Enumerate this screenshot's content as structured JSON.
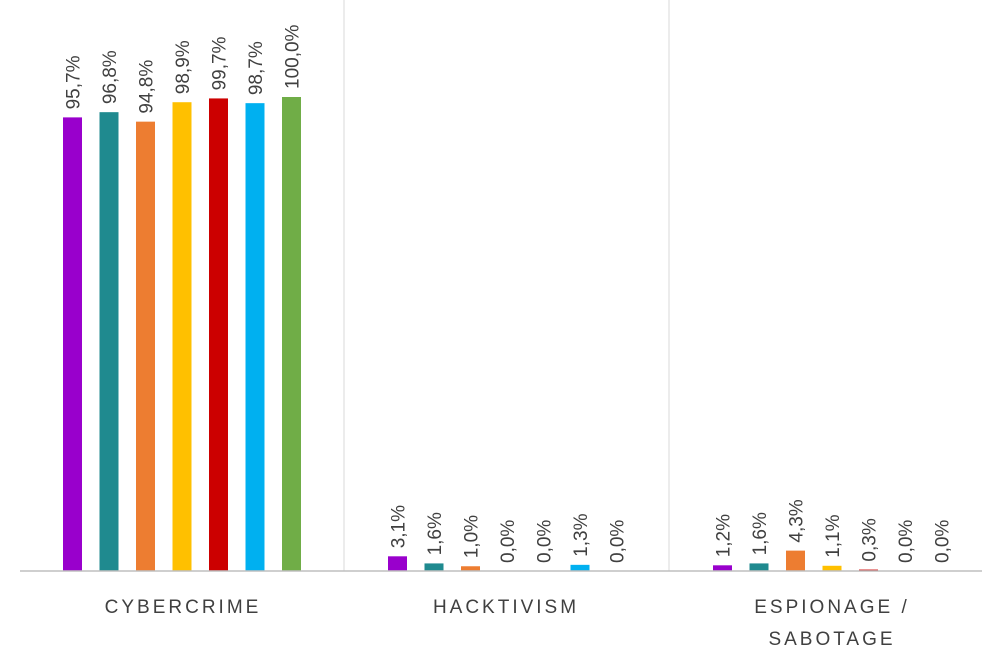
{
  "chart_data": {
    "type": "bar",
    "categories": [
      [
        "CYBERCRIME"
      ],
      [
        "HACKTIVISM"
      ],
      [
        "ESPIONAGE /",
        "SABOTAGE"
      ]
    ],
    "value_labels": [
      [
        "95,7%",
        "96,8%",
        "94,8%",
        "98,9%",
        "99,7%",
        "98,7%",
        "100,0%"
      ],
      [
        "3,1%",
        "1,6%",
        "1,0%",
        "0,0%",
        "0,0%",
        "1,3%",
        "0,0%"
      ],
      [
        "1,2%",
        "1,6%",
        "4,3%",
        "1,1%",
        "0,3%",
        "0,0%",
        "0,0%"
      ]
    ],
    "series": [
      {
        "color": "#9900CC",
        "values": [
          95.7,
          3.1,
          1.2
        ]
      },
      {
        "color": "#1F8A8F",
        "values": [
          96.8,
          1.6,
          1.6
        ]
      },
      {
        "color": "#ED7D31",
        "values": [
          94.8,
          1.0,
          4.3
        ]
      },
      {
        "color": "#FFC000",
        "values": [
          98.9,
          0.0,
          1.1
        ]
      },
      {
        "color": "#CC0000",
        "values": [
          99.7,
          0.0,
          0.3
        ]
      },
      {
        "color": "#00B0F0",
        "values": [
          98.7,
          1.3,
          0.0
        ]
      },
      {
        "color": "#70AD47",
        "values": [
          100.0,
          0.0,
          0.0
        ]
      }
    ],
    "ylim": [
      0,
      100
    ],
    "grid": false,
    "legend": "none",
    "axis_color": "#BFBFBF",
    "label_color": "#404040"
  }
}
